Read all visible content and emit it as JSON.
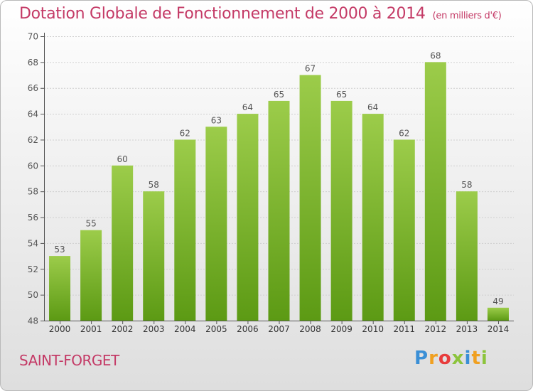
{
  "header": {
    "title": "Dotation Globale de Fonctionnement de 2000 à 2014",
    "unit": "(en milliers d'€)"
  },
  "footer": {
    "commune": "SAINT-FORGET",
    "logo_letters": [
      "P",
      "r",
      "o",
      "x",
      "i",
      "t",
      "i"
    ],
    "logo_colors": [
      "#3a8fd6",
      "#f0a020",
      "#e83c3c",
      "#8cc43c",
      "#3a8fd6",
      "#f0a020",
      "#8cc43c"
    ]
  },
  "chart_data": {
    "type": "bar",
    "title": "Dotation Globale de Fonctionnement de 2000 à 2014",
    "subtitle": "(en milliers d'€)",
    "xlabel": "",
    "ylabel": "",
    "categories": [
      "2000",
      "2001",
      "2002",
      "2003",
      "2004",
      "2005",
      "2006",
      "2007",
      "2008",
      "2009",
      "2010",
      "2011",
      "2012",
      "2013",
      "2014"
    ],
    "values": [
      53,
      55,
      60,
      58,
      62,
      63,
      64,
      65,
      67,
      65,
      64,
      62,
      68,
      58,
      49
    ],
    "ylim": [
      48,
      70
    ],
    "yticks": [
      48,
      50,
      52,
      54,
      56,
      58,
      60,
      62,
      64,
      66,
      68,
      70
    ],
    "grid": true,
    "bar_color_top": "#9ccc4a",
    "bar_color_bottom": "#5c9a14"
  }
}
